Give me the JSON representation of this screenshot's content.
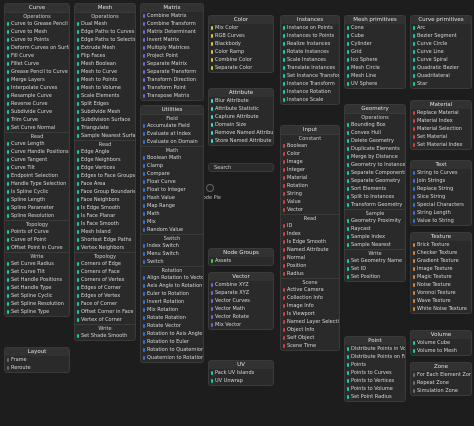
{
  "search_label": "Search",
  "pie_label": "Node Pie",
  "panels": [
    {
      "title": "Curve",
      "color": "#00d6a3",
      "sections": [
        {
          "heading": "Operations",
          "items": [
            "Curve to Grease Pencil",
            "Curve to Mesh",
            "Curve to Points",
            "Deform Curves on Surface",
            "Fill Curve",
            "Fillet Curve",
            "Grease Pencil to Curve",
            "Merge Layers",
            "Interpolate Curves",
            "Resample Curve",
            "Reverse Curve",
            "Subdivide Curve",
            "Trim Curve",
            "Set Curve Normal"
          ]
        },
        {
          "heading": "Read",
          "items": [
            "Curve Length",
            "Curve Handle Positions",
            "Curve Tangent",
            "Curve Tilt",
            "Endpoint Selection",
            "Handle Type Selection",
            "Is Spline Cyclic",
            "Spline Length",
            "Spline Parameter",
            "Spline Resolution"
          ]
        },
        {
          "heading": "Topology",
          "items": [
            "Points of Curve",
            "Curve of Point",
            "Offset Point in Curve"
          ]
        },
        {
          "heading": "Write",
          "items": [
            "Set Curve Radius",
            "Set Curve Tilt",
            "Set Handle Positions",
            "Set Handle Type",
            "Set Spline Cyclic",
            "Set Spline Resolution",
            "Set Spline Type"
          ]
        }
      ]
    },
    {
      "title": "Layout",
      "color": "#6c6c6c",
      "sections": [
        {
          "items": [
            "Frame",
            "Reroute"
          ]
        }
      ]
    },
    {
      "title": "Mesh",
      "color": "#00d6a3",
      "sections": [
        {
          "heading": "Operations",
          "items": [
            "Dual Mesh",
            "Edge Paths to Curves",
            "Edge Paths to Selection",
            "Extrude Mesh",
            "Flip Faces",
            "Mesh Boolean",
            "Mesh to Curve",
            "Mesh to Points",
            "Mesh to Volume",
            "Scale Elements",
            "Split Edges",
            "Subdivide Mesh",
            "Subdivision Surface",
            "Triangulate",
            "Sample Nearest Surface"
          ]
        },
        {
          "heading": "Read",
          "items": [
            "Edge Angle",
            "Edge Neighbors",
            "Edge Vertices",
            "Edges to Face Groups",
            "Face Area",
            "Face Group Boundaries",
            "Face Neighbors",
            "Is Edge Smooth",
            "Is Face Planar",
            "Is Face Smooth",
            "Mesh Island",
            "Shortest Edge Paths",
            "Vertex Neighbors"
          ]
        },
        {
          "heading": "Topology",
          "items": [
            "Corners of Edge",
            "Corners of Face",
            "Corners of Vertex",
            "Edges of Corner",
            "Edges of Vertex",
            "Face of Corner",
            "Offset Corner in Face",
            "Vertex of Corner"
          ]
        },
        {
          "heading": "Write",
          "items": [
            "Set Shade Smooth"
          ]
        }
      ]
    },
    {
      "title": "Matrix",
      "color": "#6b6bd6",
      "sections": [
        {
          "items": [
            "Combine Matrix",
            "Combine Transform",
            "Matrix Determinant",
            "Invert Matrix",
            "Multiply Matrices",
            "Project Point",
            "Separate Matrix",
            "Separate Transform",
            "Transform Direction",
            "Transform Point",
            "Transpose Matrix"
          ]
        }
      ]
    },
    {
      "title": "Utilities",
      "color": "#3c6fd6",
      "sections": [
        {
          "heading": "Field",
          "items": [
            "Accumulate Field",
            "Evaluate at Index",
            "Evaluate on Domain"
          ]
        },
        {
          "heading": "Math",
          "items": [
            "Boolean Math",
            "Clamp",
            "Compare",
            "Float Curve",
            "Float to Integer",
            "Hash Value",
            "Map Range",
            "Math",
            "Mix",
            "Random Value"
          ]
        },
        {
          "heading": "Switch",
          "items": [
            "Index Switch",
            "Menu Switch",
            "Switch"
          ]
        },
        {
          "heading": "Rotation",
          "items": [
            "Align Rotation to Vector",
            "Axis Angle to Rotation",
            "Euler to Rotation",
            "Invert Rotation",
            "Mix Rotation",
            "Rotate Rotation",
            "Rotate Vector",
            "Rotation to Axis Angle",
            "Rotation to Euler",
            "Rotation to Quaternion",
            "Quaternion to Rotation"
          ]
        }
      ]
    },
    {
      "title": "Color",
      "color": "#d6c43c",
      "sections": [
        {
          "items": [
            "Mix Color",
            "RGB Curves",
            "Blackbody",
            "Color Ramp",
            "Combine Color",
            "Separate Color"
          ]
        }
      ]
    },
    {
      "title": "Attribute",
      "color": "#3cd6d6",
      "sections": [
        {
          "items": [
            "Blur Attribute",
            "Attribute Statistic",
            "Capture Attribute",
            "Domain Size",
            "Remove Named Attribute",
            "Store Named Attribute"
          ]
        }
      ]
    },
    {
      "title": "Node Groups",
      "color": "#3cd63c",
      "sections": [
        {
          "items": [
            "Assets"
          ]
        }
      ]
    },
    {
      "title": "Vector",
      "color": "#6b6bd6",
      "sections": [
        {
          "items": [
            "Combine XYZ",
            "Separate XYZ",
            "Vector Curves",
            "Vector Math",
            "Vector Rotate",
            "Mix Vector"
          ]
        }
      ]
    },
    {
      "title": "UV",
      "color": "#00d6a3",
      "sections": [
        {
          "items": [
            "Pack UV Islands",
            "UV Unwrap"
          ]
        }
      ]
    },
    {
      "title": "Instances",
      "color": "#00d6a3",
      "sections": [
        {
          "items": [
            "Instance on Points",
            "Instances to Points",
            "Realize Instances",
            "Rotate Instances",
            "Scale Instances",
            "Translate Instances",
            "Set Instance Transform",
            "Instance Transform",
            "Instance Rotation",
            "Instance Scale"
          ]
        }
      ]
    },
    {
      "title": "Input",
      "color": "#d63c3c",
      "sections": [
        {
          "heading": "Constant",
          "items": [
            "Boolean",
            "Color",
            "Image",
            "Integer",
            "Material",
            "Rotation",
            "String",
            "Value",
            "Vector"
          ]
        },
        {
          "heading": "Read",
          "items": [
            "ID",
            "Index",
            "Is Edge Smooth",
            "Named Attribute",
            "Normal",
            "Position",
            "Radius"
          ]
        },
        {
          "heading": "Scene",
          "items": [
            "Active Camera",
            "Collection Info",
            "Image Info",
            "Is Viewport",
            "Named Layer Selection",
            "Object Info",
            "Self Object",
            "Scene Time"
          ]
        }
      ]
    },
    {
      "title": "Mesh primitives",
      "color": "#00d6a3",
      "sections": [
        {
          "items": [
            "Cone",
            "Cube",
            "Cylinder",
            "Grid",
            "Ico Sphere",
            "Mesh Circle",
            "Mesh Line",
            "UV Sphere"
          ]
        }
      ]
    },
    {
      "title": "Geometry",
      "color": "#00d6a3",
      "sections": [
        {
          "heading": "Operations",
          "items": [
            "Bounding Box",
            "Convex Hull",
            "Delete Geometry",
            "Duplicate Elements",
            "Merge by Distance",
            "Geometry to Instance",
            "Separate Components",
            "Separate Geometry",
            "Sort Elements",
            "Split to Instances",
            "Transform Geometry"
          ]
        },
        {
          "heading": "Sample",
          "items": [
            "Geometry Proximity",
            "Raycast",
            "Sample Index",
            "Sample Nearest"
          ]
        },
        {
          "heading": "Write",
          "items": [
            "Set Geometry Name",
            "Set ID",
            "Set Position"
          ]
        }
      ]
    },
    {
      "title": "Point",
      "color": "#00d6a3",
      "sections": [
        {
          "items": [
            "Distribute Points in Volume",
            "Distribute Points on Faces",
            "Points",
            "Points to Curves",
            "Points to Vertices",
            "Points to Volume",
            "Set Point Radius"
          ]
        }
      ]
    },
    {
      "title": "Curve primitives",
      "color": "#00d6a3",
      "sections": [
        {
          "items": [
            "Arc",
            "Bezier Segment",
            "Curve Circle",
            "Curve Line",
            "Curve Spiral",
            "Quadratic Bezier",
            "Quadrilateral",
            "Star"
          ]
        }
      ]
    },
    {
      "title": "Material",
      "color": "#d63c3c",
      "sections": [
        {
          "items": [
            "Replace Material",
            "Material Index",
            "Material Selection",
            "Set Material",
            "Set Material Index"
          ]
        }
      ]
    },
    {
      "title": "Text",
      "color": "#3c6fd6",
      "sections": [
        {
          "items": [
            "String to Curves",
            "Join Strings",
            "Replace String",
            "Slice String",
            "Special Characters",
            "String Length",
            "Value to String"
          ]
        }
      ]
    },
    {
      "title": "Texture",
      "color": "#d6843c",
      "sections": [
        {
          "items": [
            "Brick Texture",
            "Checker Texture",
            "Gradient Texture",
            "Image Texture",
            "Magic Texture",
            "Noise Texture",
            "Voronoi Texture",
            "Wave Texture",
            "White Noise Texture"
          ]
        }
      ]
    },
    {
      "title": "Volume",
      "color": "#00d6a3",
      "sections": [
        {
          "items": [
            "Volume Cube",
            "Volume to Mesh"
          ]
        }
      ]
    },
    {
      "title": "Zone",
      "color": "#6c6c6c",
      "sections": [
        {
          "items": [
            "For Each Element Zone",
            "Repeat Zone",
            "Simulation Zone"
          ]
        }
      ]
    }
  ]
}
